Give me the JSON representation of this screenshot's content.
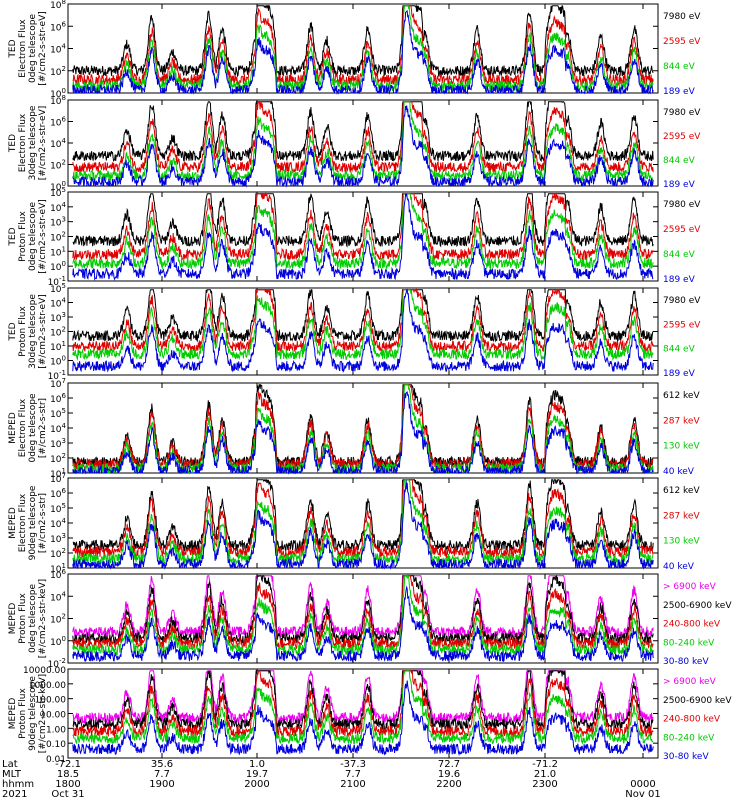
{
  "chart_data": {
    "type": "line",
    "x_axis": {
      "row_labels": [
        "Lat",
        "MLT",
        "hhmm",
        "2021"
      ],
      "ticks": [
        {
          "hhmm": "1800",
          "lat": "-72.1",
          "mlt": "18.5",
          "date": "Oct 31"
        },
        {
          "hhmm": "1900",
          "lat": "35.6",
          "mlt": "7.7",
          "date": ""
        },
        {
          "hhmm": "2000",
          "lat": "1.0",
          "mlt": "19.7",
          "date": ""
        },
        {
          "hhmm": "2100",
          "lat": "-37.3",
          "mlt": "7.7",
          "date": ""
        },
        {
          "hhmm": "2200",
          "lat": "72.7",
          "mlt": "19.6",
          "date": ""
        },
        {
          "hhmm": "2300",
          "lat": "-71.2",
          "mlt": "21.0",
          "date": ""
        },
        {
          "hhmm": "0000",
          "lat": "",
          "mlt": "",
          "date": "Nov 01"
        }
      ],
      "range_hours": [
        18.0,
        24.2
      ]
    },
    "panels": [
      {
        "ylabel": [
          "TED",
          "Electron Flux",
          "0deg telescope",
          "[#/cm2-s-str-eV]"
        ],
        "log_scale": true,
        "ylim": [
          1,
          100000000
        ],
        "tick_labels": [
          "10^0",
          "10^2",
          "10^4",
          "10^6",
          "10^8"
        ],
        "series": [
          {
            "name": "7980 eV",
            "color": "#000000"
          },
          {
            "name": "2595 eV",
            "color": "#e00000"
          },
          {
            "name": "844 eV",
            "color": "#00cc00"
          },
          {
            "name": "189 eV",
            "color": "#0000dd"
          }
        ]
      },
      {
        "ylabel": [
          "TED",
          "Electron Flux",
          "30deg telescope",
          "[#/cm2-s-str-eV]"
        ],
        "log_scale": true,
        "ylim": [
          1,
          100000000
        ],
        "tick_labels": [
          "10^0",
          "10^2",
          "10^4",
          "10^6",
          "10^8"
        ],
        "series": [
          {
            "name": "7980 eV",
            "color": "#000000"
          },
          {
            "name": "2595 eV",
            "color": "#e00000"
          },
          {
            "name": "844 eV",
            "color": "#00cc00"
          },
          {
            "name": "189 eV",
            "color": "#0000dd"
          }
        ]
      },
      {
        "ylabel": [
          "TED",
          "Proton Flux",
          "0deg telescope",
          "[#/cm2-s-str-eV]"
        ],
        "log_scale": true,
        "ylim": [
          0.1,
          100000
        ],
        "tick_labels": [
          "10^-1",
          "10^0",
          "10^1",
          "10^2",
          "10^3",
          "10^4",
          "10^5"
        ],
        "series": [
          {
            "name": "7980 eV",
            "color": "#000000"
          },
          {
            "name": "2595 eV",
            "color": "#e00000"
          },
          {
            "name": "844 eV",
            "color": "#00cc00"
          },
          {
            "name": "189 eV",
            "color": "#0000dd"
          }
        ]
      },
      {
        "ylabel": [
          "TED",
          "Proton Flux",
          "30deg telescope",
          "[#/cm2-s-str-eV]"
        ],
        "log_scale": true,
        "ylim": [
          0.1,
          100000
        ],
        "tick_labels": [
          "10^-1",
          "10^0",
          "10^1",
          "10^2",
          "10^3",
          "10^4",
          "10^5"
        ],
        "series": [
          {
            "name": "7980 eV",
            "color": "#000000"
          },
          {
            "name": "2595 eV",
            "color": "#e00000"
          },
          {
            "name": "844 eV",
            "color": "#00cc00"
          },
          {
            "name": "189 eV",
            "color": "#0000dd"
          }
        ]
      },
      {
        "ylabel": [
          "MEPED",
          "Electron Flux",
          "0deg telescope",
          "[#/cm2-s-str]"
        ],
        "log_scale": true,
        "ylim": [
          10,
          10000000
        ],
        "tick_labels": [
          "10^1",
          "10^2",
          "10^3",
          "10^4",
          "10^5",
          "10^6",
          "10^7"
        ],
        "series": [
          {
            "name": "612 keV",
            "color": "#000000"
          },
          {
            "name": "287 keV",
            "color": "#e00000"
          },
          {
            "name": "130 keV",
            "color": "#00cc00"
          },
          {
            "name": "40 keV",
            "color": "#0000dd"
          }
        ]
      },
      {
        "ylabel": [
          "MEPED",
          "Electron Flux",
          "90deg telescope",
          "[#/cm2-s-str]"
        ],
        "log_scale": true,
        "ylim": [
          10,
          10000000
        ],
        "tick_labels": [
          "10^1",
          "10^2",
          "10^3",
          "10^4",
          "10^5",
          "10^6",
          "10^7"
        ],
        "series": [
          {
            "name": "612 keV",
            "color": "#000000"
          },
          {
            "name": "287 keV",
            "color": "#e00000"
          },
          {
            "name": "130 keV",
            "color": "#00cc00"
          },
          {
            "name": "40 keV",
            "color": "#0000dd"
          }
        ]
      },
      {
        "ylabel": [
          "MEPED",
          "Proton Flux",
          "0deg telescope",
          "[#/cm2-s-str-keV]"
        ],
        "log_scale": true,
        "ylim": [
          0.01,
          1000000
        ],
        "tick_labels": [
          "10^-2",
          "10^0",
          "10^2",
          "10^4",
          "10^6"
        ],
        "series": [
          {
            "name": "> 6900 keV",
            "color": "#ee00ee"
          },
          {
            "name": "2500-6900 keV",
            "color": "#000000"
          },
          {
            "name": "240-800 keV",
            "color": "#e00000"
          },
          {
            "name": "80-240 keV",
            "color": "#00cc00"
          },
          {
            "name": "30-80 keV",
            "color": "#0000dd"
          }
        ]
      },
      {
        "ylabel": [
          "MEPED",
          "Proton Flux",
          "90deg telescope",
          "[#/cm2-s-str-keV]"
        ],
        "log_scale": true,
        "ylim": [
          0.01,
          10000
        ],
        "tick_labels": [
          "0.01",
          "0.10",
          "1.00",
          "10.00",
          "100.00",
          "1000.00",
          "10000.00"
        ],
        "series": [
          {
            "name": "> 6900 keV",
            "color": "#ee00ee"
          },
          {
            "name": "2500-6900 keV",
            "color": "#000000"
          },
          {
            "name": "240-800 keV",
            "color": "#e00000"
          },
          {
            "name": "80-240 keV",
            "color": "#00cc00"
          },
          {
            "name": "30-80 keV",
            "color": "#0000dd"
          }
        ]
      }
    ]
  }
}
